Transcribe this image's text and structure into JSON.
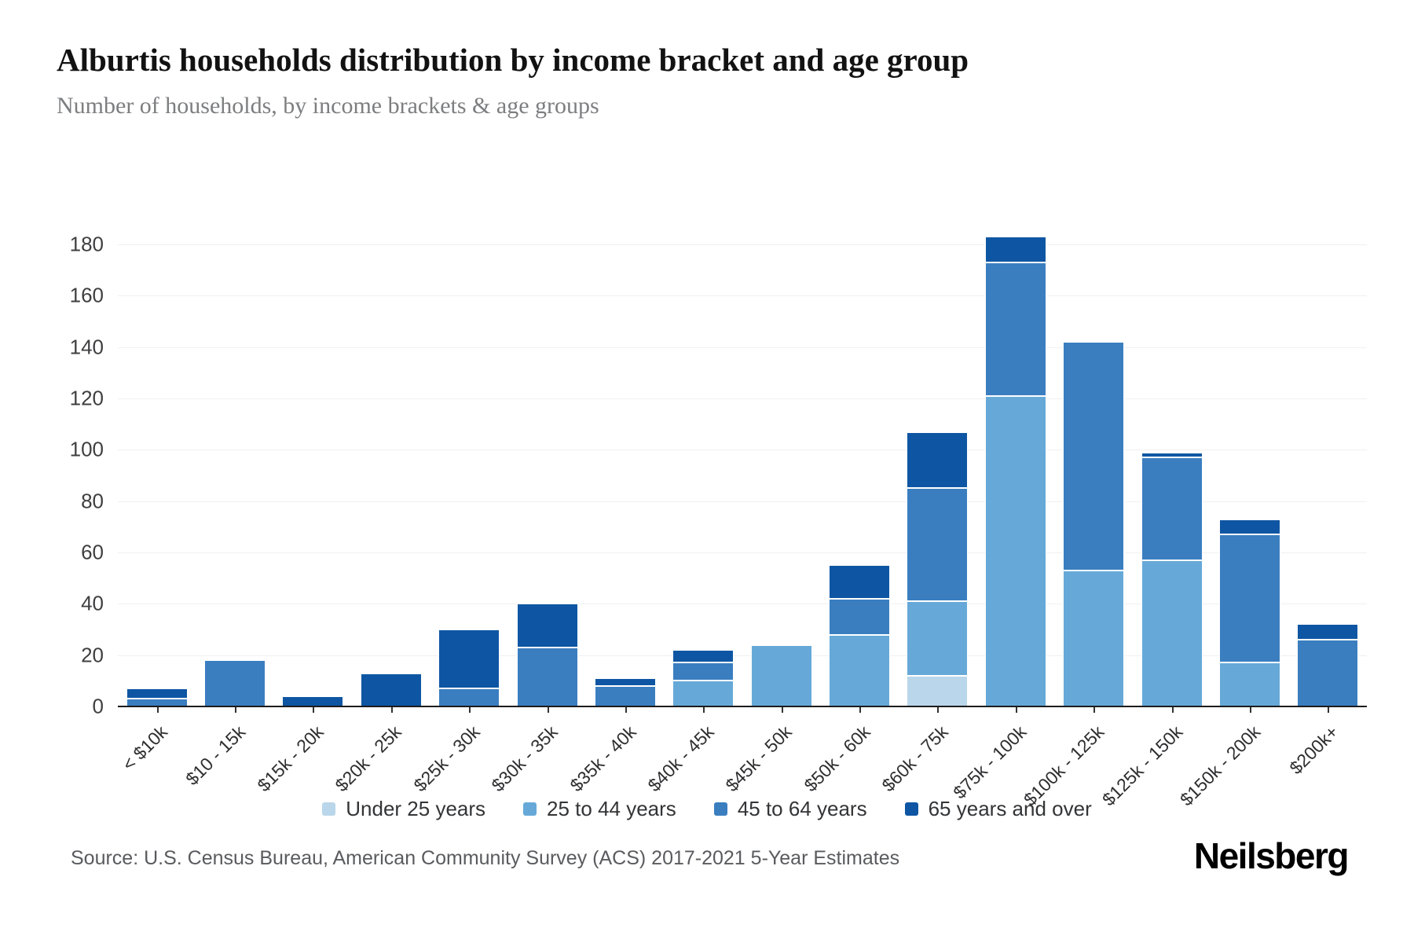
{
  "title": "Alburtis households distribution by income bracket and age group",
  "subtitle": "Number of households, by income brackets & age groups",
  "source": "Source: U.S. Census Bureau, American Community Survey (ACS) 2017-2021 5-Year Estimates",
  "brand": "Neilsberg",
  "colors": {
    "under_25": "#bad6ea",
    "25_to_44": "#66a9d8",
    "45_to_64": "#3a7ec0",
    "65_and_over": "#0e56a3",
    "axis_line": "#1b1c1e",
    "gridline": "#f0f0f1"
  },
  "chart_data": {
    "type": "bar",
    "stacked": true,
    "grid": true,
    "legend_position": "bottom",
    "title": "Alburtis households distribution by income bracket and age group",
    "xlabel": "",
    "ylabel": "",
    "ylim": [
      0,
      180
    ],
    "ytick_step": 20,
    "ytick_labels": [
      "0",
      "20",
      "40",
      "60",
      "80",
      "100",
      "120",
      "140",
      "160",
      "180"
    ],
    "categories": [
      "< $10k",
      "$10 - 15k",
      "$15k - 20k",
      "$20k - 25k",
      "$25k - 30k",
      "$30k - 35k",
      "$35k - 40k",
      "$40k - 45k",
      "$45k - 50k",
      "$50k - 60k",
      "$60k - 75k",
      "$75k - 100k",
      "$100k - 125k",
      "$125k - 150k",
      "$150k - 200k",
      "$200k+"
    ],
    "series": [
      {
        "name": "Under 25 years",
        "color": "#bad6ea",
        "values": [
          0,
          0,
          0,
          0,
          0,
          0,
          0,
          0,
          0,
          0,
          12,
          0,
          0,
          0,
          0,
          0
        ]
      },
      {
        "name": "25 to 44 years",
        "color": "#66a9d8",
        "values": [
          0,
          0,
          0,
          0,
          0,
          0,
          0,
          10,
          24,
          28,
          29,
          121,
          53,
          57,
          17,
          0
        ]
      },
      {
        "name": "45 to 64 years",
        "color": "#3a7ec0",
        "values": [
          3,
          18,
          0,
          0,
          7,
          23,
          8,
          7,
          0,
          14,
          44,
          52,
          89,
          40,
          50,
          26
        ]
      },
      {
        "name": "65 years and over",
        "color": "#0e56a3",
        "values": [
          4,
          0,
          4,
          13,
          23,
          17,
          3,
          5,
          0,
          13,
          22,
          10,
          0,
          2,
          6,
          6
        ]
      }
    ],
    "totals": [
      7,
      18,
      4,
      13,
      30,
      40,
      11,
      22,
      24,
      55,
      107,
      183,
      142,
      99,
      73,
      32
    ]
  }
}
